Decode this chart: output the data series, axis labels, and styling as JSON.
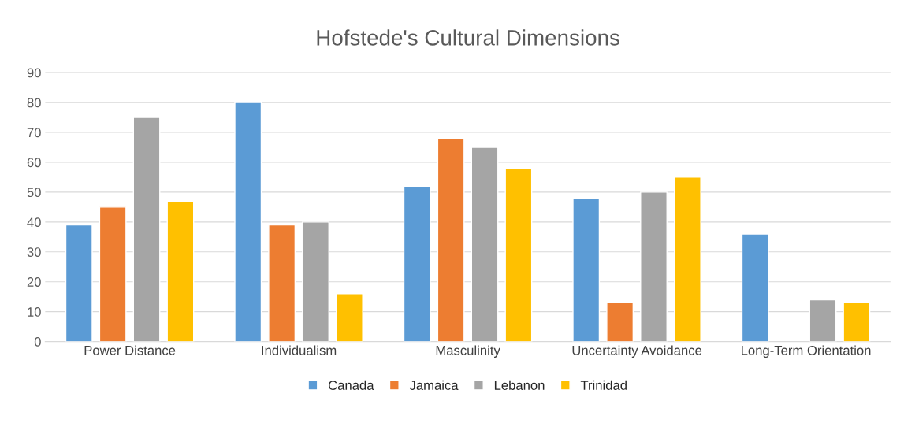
{
  "chart_data": {
    "type": "bar",
    "title": "Hofstede's Cultural Dimensions",
    "categories": [
      "Power Distance",
      "Individualism",
      "Masculinity",
      "Uncertainty Avoidance",
      "Long-Term Orientation"
    ],
    "series": [
      {
        "name": "Canada",
        "color": "#5b9bd5",
        "values": [
          39,
          80,
          52,
          48,
          36
        ]
      },
      {
        "name": "Jamaica",
        "color": "#ed7d31",
        "values": [
          45,
          39,
          68,
          13,
          null
        ]
      },
      {
        "name": "Lebanon",
        "color": "#a5a5a5",
        "values": [
          75,
          40,
          65,
          50,
          14
        ]
      },
      {
        "name": "Trinidad",
        "color": "#ffc000",
        "values": [
          47,
          16,
          58,
          55,
          13
        ]
      }
    ],
    "ylim": [
      0,
      90
    ],
    "yticks": [
      0,
      10,
      20,
      30,
      40,
      50,
      60,
      70,
      80,
      90
    ],
    "grid": "y",
    "legend": "bottom"
  }
}
